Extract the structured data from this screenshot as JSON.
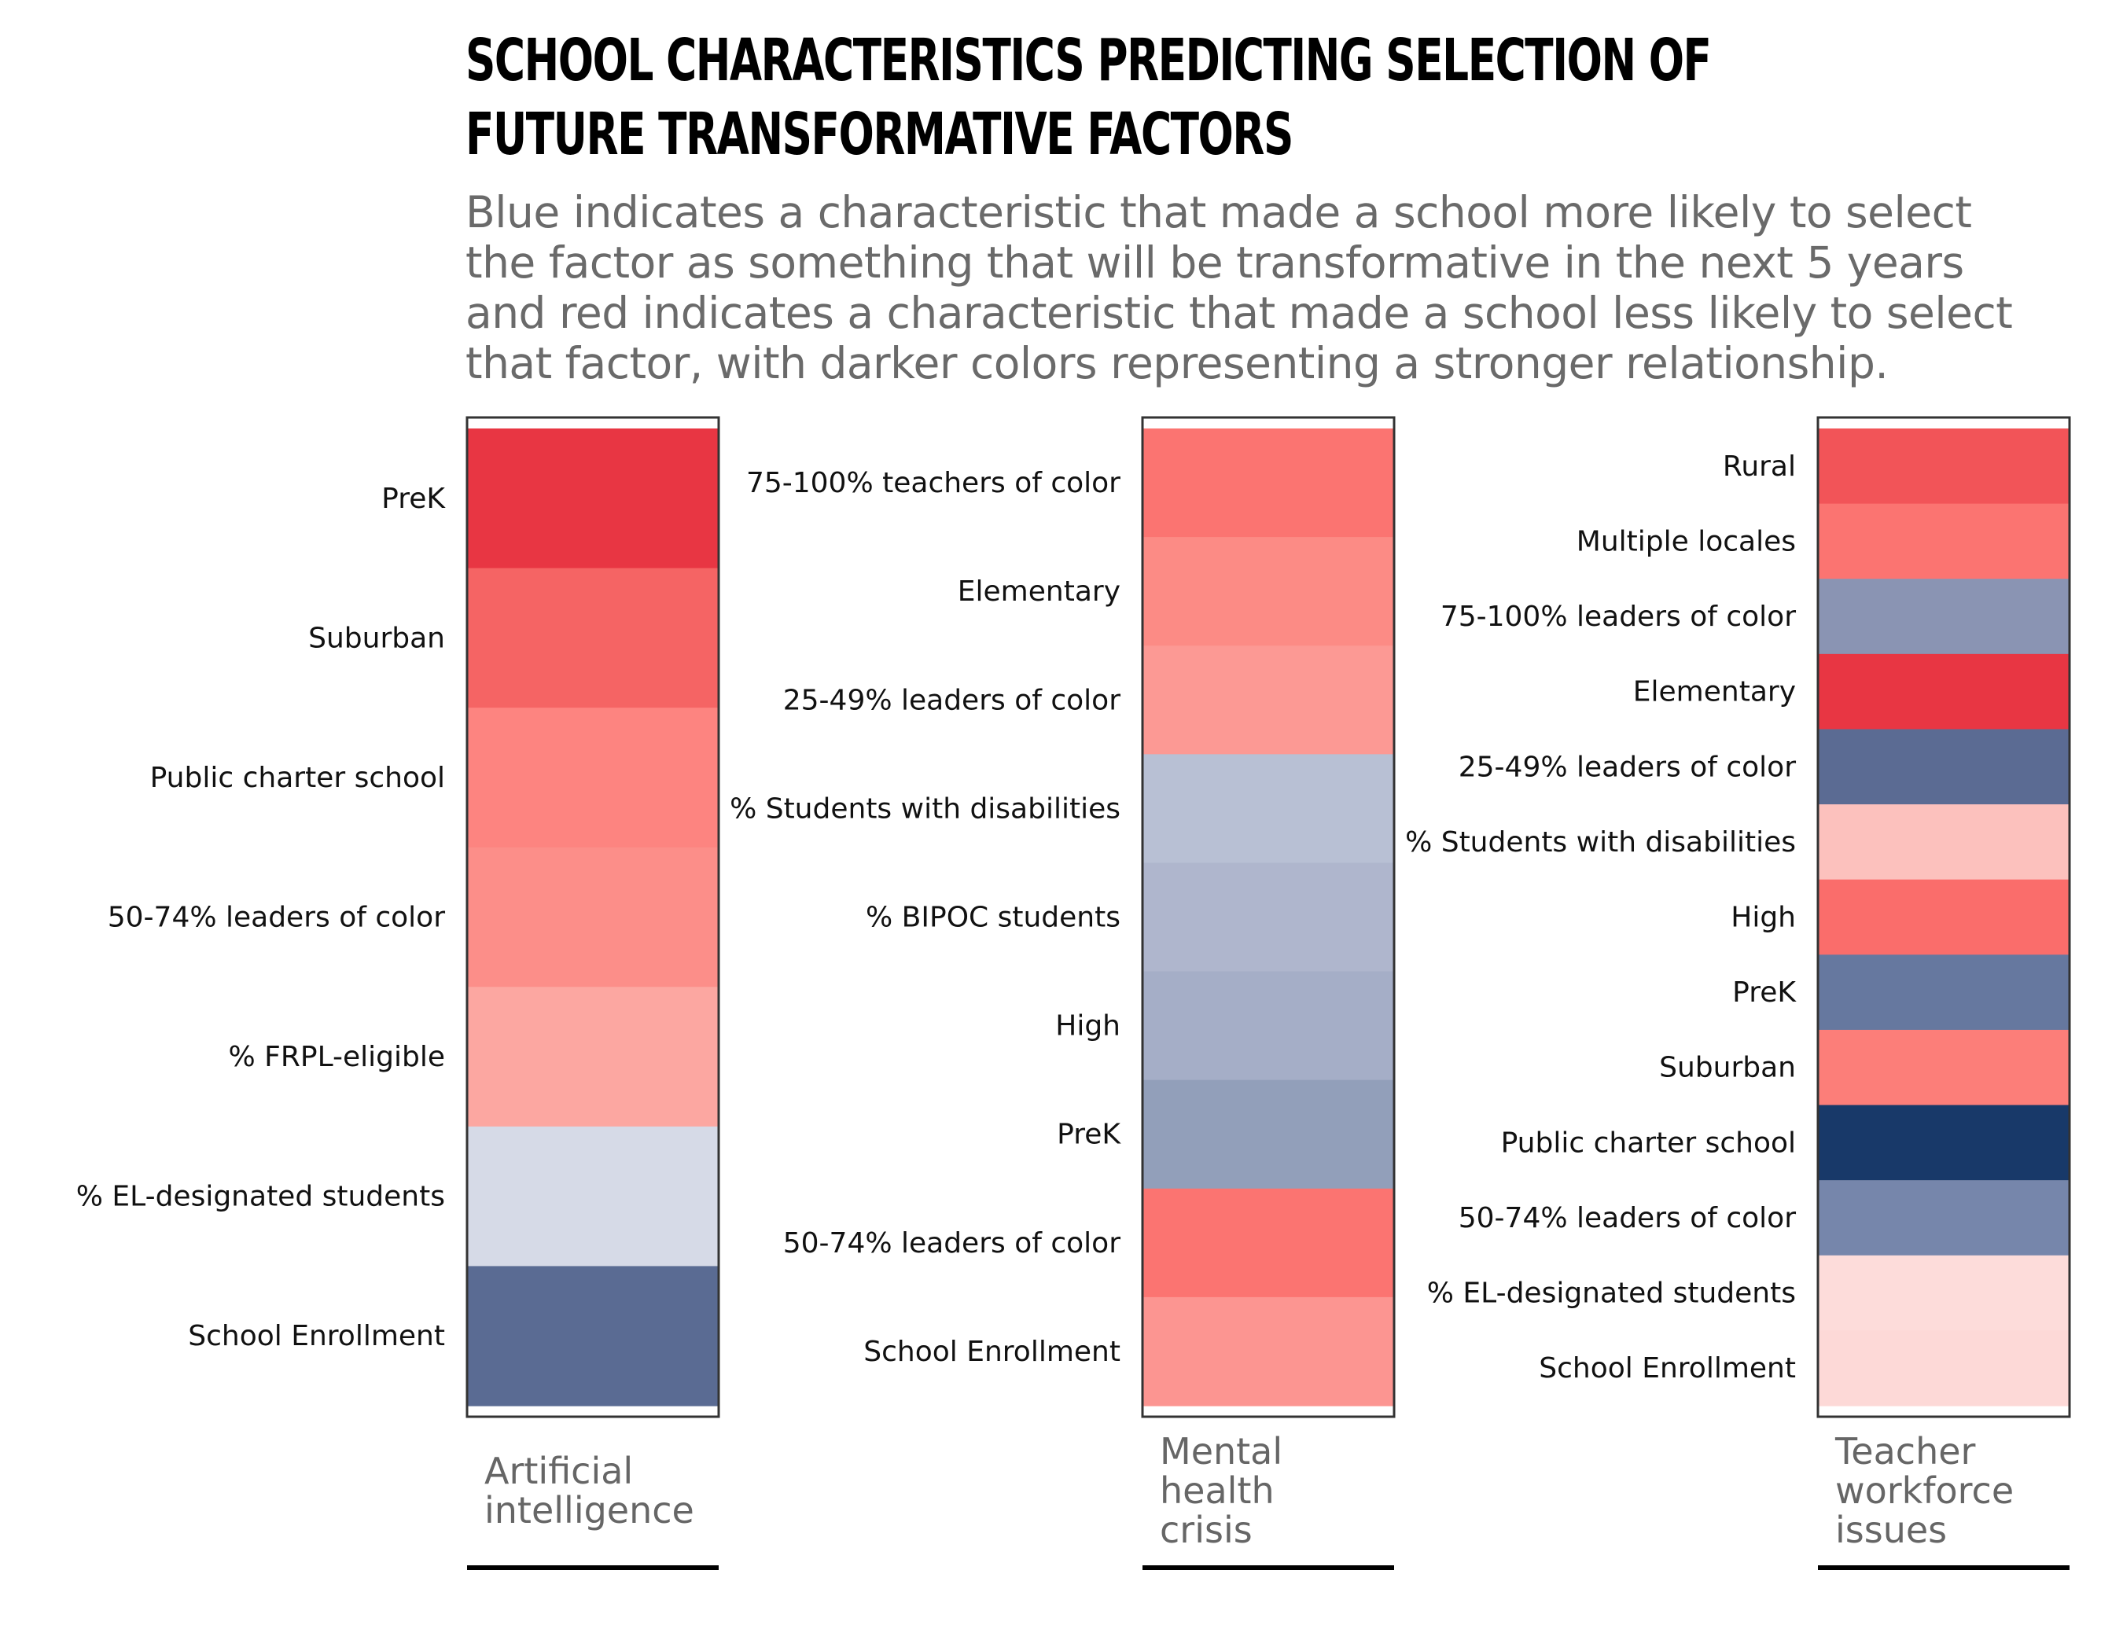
{
  "title_lines": [
    "School characteristics predicting selection of",
    "future transformative factors"
  ],
  "subtitle_lines": [
    "Blue indicates a characteristic that made a school more likely to select",
    "the factor as something that will be transformative in the next 5 years",
    "and red indicates a characteristic that made a school less likely to select",
    "that factor, with darker colors representing a stronger relationship."
  ],
  "colors": {
    "strong_red": "#e63545",
    "strong_blue": "#1a3668",
    "border": "#333333",
    "underline": "#000000"
  },
  "chart_data": [
    {
      "type": "heatmap",
      "title_lines": [
        "Artificial",
        "intelligence"
      ],
      "categories": [
        "PreK",
        "Suburban",
        "Public charter school",
        "50-74% leaders of color",
        "% FRPL-eligible",
        "% EL-designated students",
        "School Enrollment"
      ],
      "direction": [
        "less likely",
        "less likely",
        "less likely",
        "less likely",
        "less likely",
        "more likely",
        "more likely"
      ],
      "colors": [
        "#e83643",
        "#f56464",
        "#fd8480",
        "#fc8e89",
        "#fca7a1",
        "#d6dae7",
        "#5a6b93"
      ]
    },
    {
      "type": "heatmap",
      "title_lines": [
        "Mental",
        "health",
        "crisis"
      ],
      "categories": [
        "75-100% teachers of color",
        "Elementary",
        "25-49% leaders of color",
        "% Students with disabilities",
        "% BIPOC students",
        "High",
        "PreK",
        "50-74% leaders of color",
        "School Enrollment"
      ],
      "direction": [
        "less likely",
        "less likely",
        "less likely",
        "more likely",
        "more likely",
        "more likely",
        "more likely",
        "less likely",
        "less likely"
      ],
      "colors": [
        "#fb7471",
        "#fc8b85",
        "#fc9994",
        "#b8c0d4",
        "#afb6cd",
        "#a5aec7",
        "#929fba",
        "#fb7471",
        "#fc9591"
      ]
    },
    {
      "type": "heatmap",
      "title_lines": [
        "Teacher",
        "workforce",
        "issues"
      ],
      "categories": [
        "Rural",
        "Multiple locales",
        "75-100% leaders of color",
        "Elementary",
        "25-49% leaders of color",
        "% Students with disabilities",
        "High",
        "PreK",
        "Suburban",
        "Public charter school",
        "50-74% leaders of color",
        "% EL-designated students",
        "School Enrollment"
      ],
      "direction": [
        "less likely",
        "less likely",
        "more likely",
        "less likely",
        "more likely",
        "less likely",
        "less likely",
        "more likely",
        "less likely",
        "more likely",
        "more likely",
        "less likely",
        "less likely"
      ],
      "colors": [
        "#f25458",
        "#fb7471",
        "#8a94b3",
        "#e83643",
        "#5b6b93",
        "#fcc1bd",
        "#fa6d6b",
        "#66789f",
        "#fc7e79",
        "#183969",
        "#7686ab",
        "#fddcda",
        "#fdd9d7"
      ]
    }
  ]
}
